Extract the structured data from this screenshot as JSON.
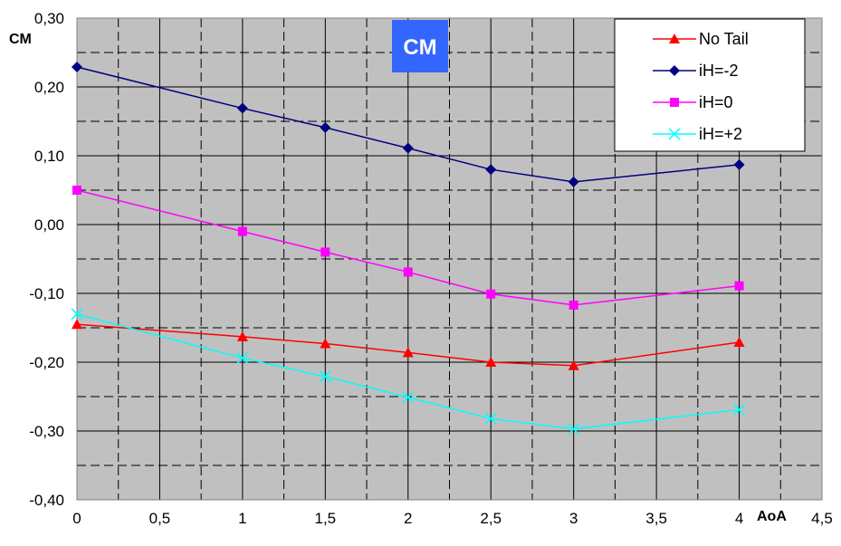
{
  "chart_data": {
    "type": "line",
    "title": "CM",
    "xlabel": "AoA",
    "ylabel": "CM",
    "xlim": [
      0,
      4.5
    ],
    "ylim": [
      -0.4,
      0.3
    ],
    "grid": true,
    "legend_position": "top-right",
    "x_ticks": [
      0,
      0.5,
      1,
      1.5,
      2,
      2.5,
      3,
      3.5,
      4,
      4.5
    ],
    "x_tick_labels": [
      "0",
      "0,5",
      "1",
      "1,5",
      "2",
      "2,5",
      "3",
      "3,5",
      "4",
      "4,5"
    ],
    "y_ticks": [
      0.3,
      0.2,
      0.1,
      0.0,
      -0.1,
      -0.2,
      -0.3,
      -0.4
    ],
    "y_tick_labels": [
      "0,30",
      "0,20",
      "0,10",
      "0,00",
      "-0,10",
      "-0,20",
      "-0,30",
      "-0,40"
    ],
    "x": [
      0,
      1,
      1.5,
      2,
      2.5,
      3,
      4
    ],
    "series": [
      {
        "name": "No Tail",
        "color": "#ff0000",
        "marker": "triangle",
        "values": [
          -0.145,
          -0.163,
          -0.173,
          -0.186,
          -0.2,
          -0.205,
          -0.171
        ]
      },
      {
        "name": "iH=-2",
        "color": "#000080",
        "marker": "diamond",
        "values": [
          0.229,
          0.169,
          0.141,
          0.111,
          0.08,
          0.062,
          0.087
        ]
      },
      {
        "name": "iH=0",
        "color": "#ff00ff",
        "marker": "square",
        "values": [
          0.05,
          -0.01,
          -0.04,
          -0.069,
          -0.101,
          -0.117,
          -0.089
        ]
      },
      {
        "name": "iH=+2",
        "color": "#00ffff",
        "marker": "x",
        "values": [
          -0.13,
          -0.194,
          -0.221,
          -0.251,
          -0.282,
          -0.297,
          -0.269
        ]
      }
    ]
  }
}
